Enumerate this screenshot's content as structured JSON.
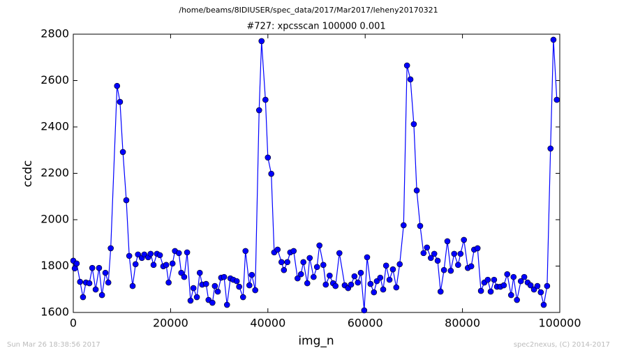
{
  "chart_data": {
    "type": "line",
    "title": "/home/beams/8IDIUSER/spec_data/2017/Mar2017/leheny20170321",
    "subtitle": "#727: xpcsscan 100000 0.001",
    "x_label": "img_n",
    "y_label": "ccdc",
    "timestamp": "Sun Mar 26 18:38:56 2017",
    "credit": "spec2nexus, (C) 2014-2017",
    "xlim": [
      0,
      100000
    ],
    "xticks": [
      0,
      20000,
      40000,
      60000,
      80000,
      100000
    ],
    "ylim": [
      1600,
      2800
    ],
    "yticks": [
      1600,
      1800,
      2000,
      2200,
      2400,
      2600,
      2800
    ],
    "grid": false,
    "x": [
      0,
      300,
      700,
      1400,
      2000,
      2600,
      3300,
      3900,
      4600,
      5300,
      5900,
      6600,
      7200,
      7700,
      9000,
      9600,
      10200,
      10900,
      11500,
      12200,
      12800,
      13300,
      14100,
      14600,
      15400,
      15900,
      16500,
      17200,
      17800,
      18500,
      19100,
      19600,
      20400,
      20900,
      21700,
      22200,
      22800,
      23400,
      24100,
      24700,
      25400,
      26000,
      26500,
      27300,
      27800,
      28600,
      29100,
      29700,
      30400,
      31000,
      31600,
      32300,
      32900,
      33600,
      34100,
      34900,
      35400,
      36200,
      36700,
      37400,
      38200,
      38700,
      39500,
      40000,
      40700,
      41300,
      42000,
      42800,
      43300,
      44000,
      44600,
      45300,
      46100,
      46800,
      47300,
      48100,
      48600,
      49400,
      50100,
      50600,
      51400,
      51900,
      52700,
      53400,
      53900,
      54700,
      55800,
      56500,
      57100,
      57800,
      58500,
      59100,
      59800,
      60400,
      61100,
      61800,
      62400,
      63100,
      63700,
      64300,
      65000,
      65700,
      66400,
      67100,
      67900,
      68600,
      69300,
      70000,
      70600,
      71300,
      72000,
      72700,
      73500,
      74200,
      74900,
      75500,
      76200,
      76900,
      77600,
      78300,
      79100,
      79600,
      80300,
      81100,
      81800,
      82400,
      83100,
      83800,
      84500,
      85200,
      85800,
      86500,
      87100,
      87800,
      88500,
      89200,
      90000,
      90500,
      91200,
      92000,
      92700,
      93400,
      94000,
      94700,
      95400,
      96100,
      96700,
      97400,
      98100,
      98700,
      99400
    ],
    "series": [
      {
        "name": "ccdc",
        "color": "#0000ff",
        "values": [
          1823,
          1790,
          1811,
          1732,
          1666,
          1729,
          1726,
          1792,
          1699,
          1792,
          1675,
          1771,
          1729,
          1877,
          2577,
          2508,
          2292,
          2084,
          1844,
          1714,
          1808,
          1850,
          1835,
          1850,
          1838,
          1853,
          1805,
          1853,
          1847,
          1799,
          1805,
          1729,
          1811,
          1865,
          1856,
          1771,
          1753,
          1859,
          1651,
          1705,
          1666,
          1771,
          1720,
          1723,
          1654,
          1642,
          1714,
          1690,
          1750,
          1753,
          1633,
          1747,
          1741,
          1735,
          1711,
          1666,
          1865,
          1717,
          1762,
          1696,
          2472,
          2770,
          2517,
          2268,
          2198,
          1859,
          1871,
          1817,
          1783,
          1817,
          1859,
          1865,
          1747,
          1765,
          1817,
          1726,
          1835,
          1753,
          1796,
          1889,
          1805,
          1720,
          1759,
          1726,
          1714,
          1856,
          1717,
          1705,
          1720,
          1756,
          1729,
          1771,
          1609,
          1838,
          1723,
          1687,
          1735,
          1750,
          1699,
          1802,
          1741,
          1786,
          1708,
          1808,
          1976,
          2665,
          2605,
          2412,
          2126,
          1973,
          1856,
          1880,
          1835,
          1853,
          1823,
          1690,
          1783,
          1907,
          1780,
          1853,
          1805,
          1853,
          1913,
          1792,
          1799,
          1871,
          1877,
          1693,
          1729,
          1741,
          1690,
          1741,
          1711,
          1711,
          1717,
          1765,
          1675,
          1753,
          1654,
          1735,
          1753,
          1729,
          1717,
          1699,
          1714,
          1687,
          1633,
          1714,
          2307,
          2776,
          2517
        ]
      }
    ]
  }
}
